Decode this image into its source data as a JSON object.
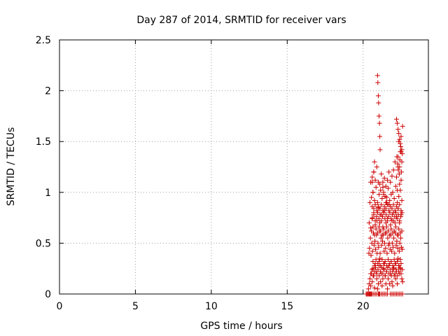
{
  "chart_data": {
    "type": "scatter",
    "title": "Day 287 of 2014, SRMTID for receiver vars",
    "xlabel": "GPS time / hours",
    "ylabel": "SRMTID / TECUs",
    "xlim": [
      0,
      24.3
    ],
    "ylim": [
      0,
      2.5
    ],
    "xticks": [
      0,
      5,
      10,
      15,
      20
    ],
    "xtick_labels": [
      "0",
      "5",
      "10",
      "15",
      "20"
    ],
    "yticks": [
      0,
      0.5,
      1,
      1.5,
      2,
      2.5
    ],
    "ytick_labels": [
      "0",
      "0.5",
      "1",
      "1.5",
      "2",
      "2.5"
    ],
    "grid": true,
    "marker": "+",
    "marker_color": "#cc0000",
    "series": [
      {
        "name": "SRMTID",
        "x": [
          20.2,
          20.25,
          20.3,
          20.35,
          20.4,
          20.45,
          20.5,
          20.55,
          20.6,
          20.7,
          20.8,
          20.9,
          21.0,
          21.05,
          21.1,
          21.2,
          21.3,
          21.4,
          21.5,
          21.6,
          21.8,
          21.9,
          22.0,
          22.1,
          22.2,
          22.3,
          22.4,
          22.5,
          22.6,
          20.35,
          20.4,
          20.45,
          20.5,
          20.55,
          20.6,
          20.65,
          20.7,
          20.75,
          20.8,
          20.85,
          20.9,
          20.95,
          21.0,
          21.05,
          21.1,
          21.15,
          21.2,
          21.25,
          21.3,
          21.35,
          21.4,
          21.45,
          21.5,
          21.55,
          21.6,
          21.65,
          21.7,
          21.75,
          21.8,
          21.85,
          21.9,
          21.95,
          22.0,
          22.05,
          22.1,
          22.15,
          22.2,
          22.25,
          22.3,
          22.35,
          22.4,
          22.45,
          22.5,
          22.55,
          22.6,
          20.38,
          20.42,
          20.48,
          20.52,
          20.58,
          20.62,
          20.68,
          20.72,
          20.78,
          20.82,
          20.88,
          20.92,
          20.98,
          21.02,
          21.08,
          21.12,
          21.18,
          21.22,
          21.28,
          21.32,
          21.38,
          21.42,
          21.48,
          21.52,
          21.58,
          21.62,
          21.68,
          21.72,
          21.78,
          21.82,
          21.88,
          21.92,
          21.98,
          22.02,
          22.08,
          22.12,
          22.18,
          22.22,
          22.28,
          22.32,
          22.38,
          22.42,
          22.48,
          22.52,
          22.58,
          20.4,
          20.5,
          20.6,
          20.7,
          20.8,
          20.9,
          21.0,
          21.1,
          21.2,
          21.3,
          21.4,
          21.5,
          21.6,
          21.7,
          21.8,
          21.9,
          22.0,
          22.1,
          22.2,
          22.3,
          22.4,
          22.5,
          20.45,
          20.55,
          20.65,
          20.75,
          20.85,
          20.95,
          21.05,
          21.15,
          21.25,
          21.35,
          21.45,
          21.55,
          21.65,
          21.75,
          21.85,
          21.95,
          22.05,
          22.15,
          22.25,
          22.35,
          22.45,
          22.55,
          20.5,
          20.6,
          20.7,
          20.8,
          20.9,
          21.0,
          21.1,
          21.2,
          21.3,
          21.4,
          21.5,
          21.6,
          21.7,
          21.8,
          21.9,
          22.0,
          22.1,
          22.2,
          22.3,
          22.4,
          22.5,
          20.55,
          20.65,
          20.75,
          20.85,
          20.95,
          21.05,
          21.15,
          21.25,
          21.35,
          21.45,
          21.55,
          21.65,
          21.75,
          21.85,
          21.95,
          22.05,
          22.15,
          22.25,
          22.35,
          22.45,
          22.55,
          20.6,
          20.7,
          20.8,
          20.9,
          21.0,
          21.1,
          21.2,
          21.3,
          21.4,
          21.5,
          21.6,
          21.7,
          21.8,
          21.9,
          22.0,
          22.1,
          22.2,
          22.3,
          22.4,
          22.5,
          20.65,
          20.75,
          20.85,
          20.95,
          21.05,
          21.15,
          21.25,
          21.35,
          21.45,
          21.55,
          21.65,
          21.75,
          21.85,
          21.95,
          22.05,
          22.15,
          22.25,
          22.35,
          22.45,
          20.5,
          20.58,
          20.66,
          20.74,
          20.82,
          20.9,
          20.98,
          21.06,
          21.14,
          21.22,
          21.3,
          21.38,
          21.46,
          21.54,
          21.62,
          21.7,
          21.78,
          21.86,
          21.94,
          22.02,
          22.1,
          22.18,
          22.26,
          22.34,
          22.42,
          22.5,
          22.58,
          20.6,
          20.7,
          20.8,
          20.88,
          20.96,
          21.04,
          21.12,
          21.2,
          21.28,
          21.36,
          21.44,
          21.52,
          21.6,
          21.68,
          21.76,
          21.84,
          21.92,
          22.0,
          22.08,
          22.16,
          22.24,
          22.32,
          22.4,
          22.48,
          22.56,
          20.95,
          20.97,
          21.0,
          21.02,
          21.05,
          21.08,
          21.1,
          21.12,
          20.7,
          20.75,
          20.6,
          20.65,
          21.3,
          21.35,
          21.5,
          21.55,
          21.7,
          22.2,
          22.25,
          22.3,
          22.35,
          22.4,
          22.45,
          22.5,
          22.55,
          22.58,
          22.22,
          22.28,
          22.32,
          22.38,
          22.42,
          22.48,
          22.52,
          22.6,
          22.35,
          22.45,
          22.5,
          22.3,
          22.4,
          22.55,
          22.25
        ],
        "y": [
          0,
          0,
          0,
          0,
          0,
          0,
          0,
          0,
          0,
          0,
          0,
          0,
          0,
          0,
          0,
          0,
          0,
          0,
          0,
          0,
          0,
          0,
          0,
          0,
          0,
          0,
          0,
          0,
          0,
          0.05,
          0.1,
          0.15,
          0.08,
          0.2,
          0.12,
          0.25,
          0.18,
          0.06,
          0.3,
          0.22,
          0.15,
          0.05,
          0.1,
          0.28,
          0.35,
          0.12,
          0.2,
          0.08,
          0.15,
          0.25,
          0.3,
          0.18,
          0.1,
          0.22,
          0.05,
          0.15,
          0.28,
          0.1,
          0.2,
          0.32,
          0.12,
          0.08,
          0.25,
          0.18,
          0.3,
          0.15,
          0.22,
          0.1,
          0.35,
          0.28,
          0.2,
          0.25,
          0.3,
          0.15,
          0.12,
          0.4,
          0.45,
          0.55,
          0.38,
          0.5,
          0.42,
          0.6,
          0.48,
          0.52,
          0.44,
          0.58,
          0.4,
          0.5,
          0.46,
          0.62,
          0.4,
          0.55,
          0.48,
          0.52,
          0.58,
          0.42,
          0.5,
          0.45,
          0.6,
          0.4,
          0.55,
          0.48,
          0.5,
          0.44,
          0.58,
          0.42,
          0.5,
          0.46,
          0.55,
          0.4,
          0.6,
          0.48,
          0.52,
          0.45,
          0.58,
          0.42,
          0.5,
          0.55,
          0.46,
          0.44,
          0.7,
          0.65,
          0.75,
          0.8,
          0.68,
          0.72,
          0.85,
          0.7,
          0.78,
          0.66,
          0.82,
          0.7,
          0.74,
          0.88,
          0.68,
          0.72,
          0.8,
          0.7,
          0.76,
          0.84,
          0.7,
          0.78,
          0.9,
          0.95,
          1.0,
          0.92,
          1.05,
          0.9,
          0.98,
          1.02,
          0.94,
          1.0,
          0.96,
          0.9,
          1.04,
          0.92,
          0.98,
          1.0,
          0.94,
          1.06,
          0.9,
          0.96,
          1.02,
          0.92,
          1.1,
          1.15,
          1.2,
          1.12,
          1.25,
          1.1,
          1.08,
          1.18,
          1.1,
          1.14,
          1.06,
          1.12,
          1.2,
          1.1,
          1.16,
          1.22,
          1.3,
          1.15,
          1.35,
          1.25,
          1.4,
          0.62,
          0.66,
          0.58,
          0.64,
          0.6,
          0.66,
          0.62,
          0.58,
          0.64,
          0.6,
          0.66,
          0.62,
          0.58,
          0.64,
          0.6,
          0.62,
          0.66,
          0.58,
          0.64,
          0.6,
          0.62,
          0.86,
          0.84,
          0.88,
          0.82,
          0.86,
          0.84,
          0.88,
          0.82,
          0.86,
          0.84,
          0.88,
          0.82,
          0.86,
          0.84,
          0.88,
          0.82,
          0.86,
          0.84,
          0.88,
          0.82,
          0.32,
          0.28,
          0.34,
          0.3,
          0.32,
          0.28,
          0.34,
          0.3,
          0.32,
          0.28,
          0.34,
          0.3,
          0.32,
          0.28,
          0.34,
          0.3,
          0.32,
          0.28,
          0.34,
          0.2,
          0.24,
          0.18,
          0.22,
          0.26,
          0.2,
          0.24,
          0.18,
          0.22,
          0.26,
          0.2,
          0.24,
          0.18,
          0.22,
          0.26,
          0.2,
          0.24,
          0.18,
          0.22,
          0.26,
          0.2,
          0.24,
          0.18,
          0.22,
          0.26,
          0.2,
          0.24,
          0.74,
          0.78,
          0.72,
          0.76,
          0.8,
          0.74,
          0.78,
          0.72,
          0.76,
          0.8,
          0.74,
          0.78,
          0.72,
          0.76,
          0.8,
          0.74,
          0.78,
          0.72,
          0.76,
          0.8,
          0.74,
          0.78,
          0.72,
          0.76,
          0.8,
          2.15,
          2.08,
          1.95,
          1.88,
          1.75,
          1.68,
          1.55,
          1.42,
          1.2,
          1.3,
          1.1,
          1.0,
          1.05,
          0.98,
          0.9,
          0.95,
          0.88,
          1.72,
          1.68,
          1.62,
          1.58,
          1.52,
          1.48,
          1.55,
          1.42,
          1.38,
          1.35,
          1.28,
          1.22,
          1.18,
          1.32,
          1.45,
          1.2,
          1.65,
          1.5,
          1.4,
          1.12,
          1.25,
          1.08,
          1.3,
          1.02
        ]
      }
    ]
  }
}
